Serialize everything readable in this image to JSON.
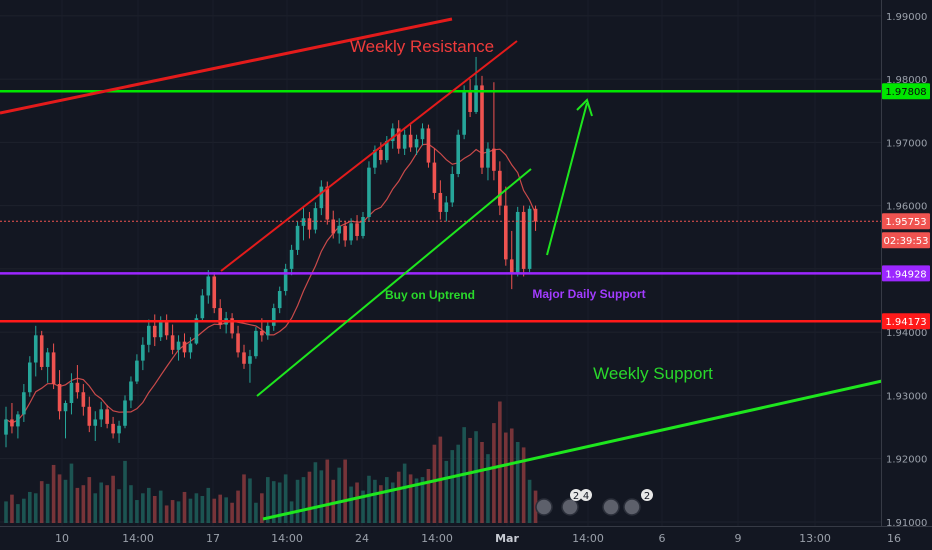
{
  "chart_data": {
    "type": "candlestick",
    "y_axis": {
      "range": [
        1.9092,
        1.9925
      ],
      "ticks": [
        "1.99000",
        "1.98000",
        "1.97000",
        "1.96000",
        "1.95000",
        "1.94000",
        "1.93000",
        "1.92000",
        "1.91000"
      ]
    },
    "x_axis": {
      "ticks": [
        "10",
        "14:00",
        "17",
        "14:00",
        "24",
        "14:00",
        "Mar",
        "14:00",
        "6",
        "9",
        "13:00",
        "16"
      ]
    },
    "price_tags": [
      {
        "label": "1.97808",
        "value": 1.97808,
        "color": "#00e600"
      },
      {
        "label": "1.95753",
        "value": 1.95753,
        "color": "#ef5350"
      },
      {
        "label": "02:39:53",
        "value": 1.954,
        "color": "#ef5350"
      },
      {
        "label": "1.94928",
        "value": 1.94928,
        "color": "#9c27ff"
      },
      {
        "label": "1.94173",
        "value": 1.94173,
        "color": "#ff1a1a"
      }
    ],
    "horizontal_levels": [
      {
        "value": 1.97808,
        "color": "#00e600",
        "width": 2.5
      },
      {
        "value": 1.94928,
        "color": "#9c27ff",
        "width": 2.5
      },
      {
        "value": 1.94173,
        "color": "#ff1a1a",
        "width": 2.5
      }
    ],
    "annotations": [
      {
        "text": "Weekly Resistance",
        "color": "#ef3b3b",
        "size": 17
      },
      {
        "text": "Buy on Uptrend",
        "color": "#29d82b",
        "size": 12
      },
      {
        "text": "Major Daily Support",
        "color": "#a23cff",
        "size": 12
      },
      {
        "text": "Weekly Support",
        "color": "#29d82b",
        "size": 17
      }
    ],
    "event_badges": [
      "2",
      "4",
      "2"
    ],
    "colors": {
      "up": "#26a69a",
      "down": "#ef5350",
      "background": "#131722",
      "ma": "#c94a4a"
    },
    "candles": [
      [
        1.9238,
        1.9282,
        1.9218,
        1.9262
      ],
      [
        1.9262,
        1.9288,
        1.924,
        1.9251
      ],
      [
        1.9251,
        1.9275,
        1.9232,
        1.927
      ],
      [
        1.927,
        1.9318,
        1.9258,
        1.9305
      ],
      [
        1.9305,
        1.9362,
        1.9298,
        1.9352
      ],
      [
        1.9352,
        1.941,
        1.933,
        1.9395
      ],
      [
        1.9395,
        1.9402,
        1.934,
        1.9345
      ],
      [
        1.9345,
        1.9375,
        1.932,
        1.9368
      ],
      [
        1.9368,
        1.9382,
        1.931,
        1.9318
      ],
      [
        1.9318,
        1.934,
        1.9262,
        1.9275
      ],
      [
        1.9275,
        1.9292,
        1.9232,
        1.9288
      ],
      [
        1.9288,
        1.9335,
        1.927,
        1.932
      ],
      [
        1.932,
        1.9348,
        1.9295,
        1.9305
      ],
      [
        1.9305,
        1.9318,
        1.9268,
        1.9282
      ],
      [
        1.9282,
        1.9298,
        1.9242,
        1.9252
      ],
      [
        1.9252,
        1.9275,
        1.9228,
        1.9262
      ],
      [
        1.9262,
        1.929,
        1.925,
        1.9278
      ],
      [
        1.9278,
        1.9285,
        1.9248,
        1.9255
      ],
      [
        1.9255,
        1.9266,
        1.9232,
        1.924
      ],
      [
        1.924,
        1.926,
        1.9225,
        1.9252
      ],
      [
        1.9252,
        1.93,
        1.9248,
        1.9292
      ],
      [
        1.9292,
        1.933,
        1.928,
        1.9322
      ],
      [
        1.9322,
        1.9365,
        1.9318,
        1.9355
      ],
      [
        1.9355,
        1.9392,
        1.934,
        1.938
      ],
      [
        1.938,
        1.942,
        1.9368,
        1.941
      ],
      [
        1.941,
        1.9428,
        1.9378,
        1.9392
      ],
      [
        1.9392,
        1.9425,
        1.9386,
        1.9418
      ],
      [
        1.9418,
        1.9428,
        1.9388,
        1.9395
      ],
      [
        1.9395,
        1.9412,
        1.9365,
        1.9372
      ],
      [
        1.9372,
        1.9395,
        1.9355,
        1.9385
      ],
      [
        1.9385,
        1.9398,
        1.936,
        1.9368
      ],
      [
        1.9368,
        1.9392,
        1.9358,
        1.9382
      ],
      [
        1.9382,
        1.9428,
        1.938,
        1.9422
      ],
      [
        1.9422,
        1.9468,
        1.9416,
        1.9458
      ],
      [
        1.9458,
        1.9498,
        1.9445,
        1.9488
      ],
      [
        1.9488,
        1.9495,
        1.943,
        1.9438
      ],
      [
        1.9438,
        1.9452,
        1.9405,
        1.9412
      ],
      [
        1.9412,
        1.9432,
        1.9398,
        1.9422
      ],
      [
        1.9422,
        1.943,
        1.939,
        1.9398
      ],
      [
        1.9398,
        1.941,
        1.936,
        1.9368
      ],
      [
        1.9368,
        1.938,
        1.9342,
        1.935
      ],
      [
        1.935,
        1.9372,
        1.932,
        1.9362
      ],
      [
        1.9362,
        1.9408,
        1.9358,
        1.9402
      ],
      [
        1.9402,
        1.9422,
        1.9385,
        1.9395
      ],
      [
        1.9395,
        1.9418,
        1.9388,
        1.941
      ],
      [
        1.941,
        1.9445,
        1.9402,
        1.9438
      ],
      [
        1.9438,
        1.9472,
        1.943,
        1.9465
      ],
      [
        1.9465,
        1.9508,
        1.9458,
        1.95
      ],
      [
        1.95,
        1.9538,
        1.949,
        1.953
      ],
      [
        1.953,
        1.9575,
        1.9522,
        1.9568
      ],
      [
        1.9568,
        1.9598,
        1.9545,
        1.958
      ],
      [
        1.958,
        1.959,
        1.9548,
        1.9562
      ],
      [
        1.9562,
        1.9605,
        1.9556,
        1.9596
      ],
      [
        1.9596,
        1.964,
        1.9585,
        1.963
      ],
      [
        1.963,
        1.9638,
        1.957,
        1.9578
      ],
      [
        1.9578,
        1.9592,
        1.9548,
        1.9556
      ],
      [
        1.9556,
        1.958,
        1.954,
        1.9568
      ],
      [
        1.9568,
        1.9575,
        1.9535,
        1.9545
      ],
      [
        1.9545,
        1.958,
        1.9538,
        1.9572
      ],
      [
        1.9572,
        1.9585,
        1.9545,
        1.9552
      ],
      [
        1.9552,
        1.959,
        1.9548,
        1.9582
      ],
      [
        1.9582,
        1.967,
        1.9575,
        1.966
      ],
      [
        1.966,
        1.9695,
        1.965,
        1.9688
      ],
      [
        1.9688,
        1.97,
        1.9665,
        1.9672
      ],
      [
        1.9672,
        1.971,
        1.9668,
        1.9702
      ],
      [
        1.9702,
        1.973,
        1.969,
        1.9722
      ],
      [
        1.9722,
        1.9735,
        1.9682,
        1.969
      ],
      [
        1.969,
        1.972,
        1.968,
        1.9712
      ],
      [
        1.9712,
        1.9728,
        1.9685,
        1.9692
      ],
      [
        1.9692,
        1.9712,
        1.968,
        1.9705
      ],
      [
        1.9705,
        1.973,
        1.9695,
        1.9722
      ],
      [
        1.9722,
        1.9728,
        1.966,
        1.9668
      ],
      [
        1.9668,
        1.969,
        1.961,
        1.962
      ],
      [
        1.962,
        1.964,
        1.9578,
        1.959
      ],
      [
        1.959,
        1.9615,
        1.9575,
        1.9605
      ],
      [
        1.9605,
        1.9662,
        1.9598,
        1.965
      ],
      [
        1.965,
        1.972,
        1.9645,
        1.9712
      ],
      [
        1.9712,
        1.979,
        1.9705,
        1.9782
      ],
      [
        1.9782,
        1.98,
        1.974,
        1.9748
      ],
      [
        1.9748,
        1.9835,
        1.9745,
        1.979
      ],
      [
        1.979,
        1.9805,
        1.965,
        1.966
      ],
      [
        1.966,
        1.97,
        1.964,
        1.969
      ],
      [
        1.969,
        1.9795,
        1.964,
        1.9655
      ],
      [
        1.9655,
        1.967,
        1.9585,
        1.96
      ],
      [
        1.96,
        1.963,
        1.9505,
        1.9515
      ],
      [
        1.9515,
        1.956,
        1.9468,
        1.9492
      ],
      [
        1.9492,
        1.9598,
        1.9488,
        1.959
      ],
      [
        1.959,
        1.96,
        1.9488,
        1.95
      ],
      [
        1.95,
        1.96,
        1.9495,
        1.9595
      ],
      [
        1.9595,
        1.96,
        1.956,
        1.9575
      ]
    ],
    "volumes": [
      0.16,
      0.21,
      0.14,
      0.18,
      0.23,
      0.22,
      0.31,
      0.29,
      0.43,
      0.36,
      0.32,
      0.44,
      0.26,
      0.28,
      0.34,
      0.22,
      0.3,
      0.28,
      0.35,
      0.25,
      0.46,
      0.28,
      0.17,
      0.22,
      0.26,
      0.2,
      0.24,
      0.13,
      0.17,
      0.16,
      0.23,
      0.18,
      0.22,
      0.2,
      0.26,
      0.18,
      0.21,
      0.19,
      0.15,
      0.24,
      0.36,
      0.33,
      0.15,
      0.22,
      0.34,
      0.31,
      0.3,
      0.36,
      0.16,
      0.32,
      0.34,
      0.38,
      0.45,
      0.39,
      0.47,
      0.32,
      0.41,
      0.47,
      0.27,
      0.3,
      0.24,
      0.35,
      0.32,
      0.28,
      0.34,
      0.3,
      0.38,
      0.44,
      0.36,
      0.33,
      0.34,
      0.4,
      0.58,
      0.64,
      0.46,
      0.54,
      0.58,
      0.71,
      0.63,
      0.68,
      0.6,
      0.51,
      0.74,
      0.9,
      0.67,
      0.7,
      0.6,
      0.56,
      0.32,
      0.24
    ]
  }
}
